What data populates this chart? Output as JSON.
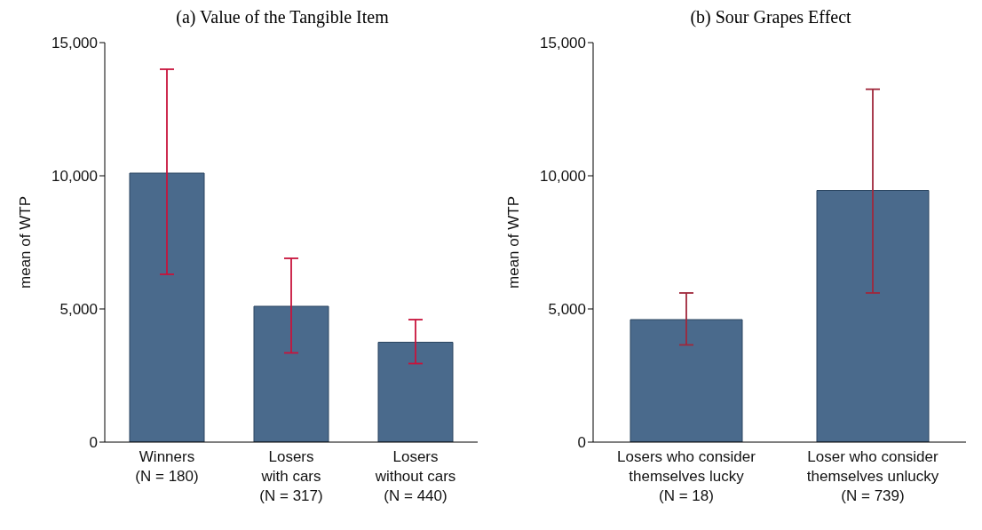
{
  "chart_data": [
    {
      "type": "bar",
      "title": "(a) Value of the Tangible Item",
      "ylabel": "mean of WTP",
      "categories": [
        "Winners\n(N = 180)",
        "Losers\nwith cars\n(N = 317)",
        "Losers\nwithout cars\n(N = 440)"
      ],
      "values": [
        10100,
        5100,
        3750
      ],
      "errors": [
        [
          6300,
          14000
        ],
        [
          3350,
          6900
        ],
        [
          2950,
          4600
        ]
      ],
      "color": "#4a6a8c",
      "ylim": [
        0,
        15000
      ],
      "yticks": [
        {
          "value": 0,
          "label": "0"
        },
        {
          "value": 5000,
          "label": "5,000"
        },
        {
          "value": 10000,
          "label": "10,000"
        },
        {
          "value": 15000,
          "label": "15,000"
        }
      ],
      "grid": false,
      "legend": false
    },
    {
      "type": "bar",
      "title": "(b) Sour Grapes Effect",
      "ylabel": "mean of WTP",
      "categories": [
        "Losers who consider\nthemselves lucky\n(N = 18)",
        "Loser who consider\nthemselves unlucky\n(N = 739)"
      ],
      "values": [
        4600,
        9450
      ],
      "errors": [
        [
          3650,
          5600
        ],
        [
          5600,
          13250
        ]
      ],
      "color": "#4a6a8c",
      "ylim": [
        0,
        15000
      ],
      "yticks": [
        {
          "value": 0,
          "label": "0"
        },
        {
          "value": 5000,
          "label": "5,000"
        },
        {
          "value": 10000,
          "label": "10,000"
        },
        {
          "value": 15000,
          "label": "15,000"
        }
      ],
      "grid": false,
      "legend": false
    }
  ]
}
